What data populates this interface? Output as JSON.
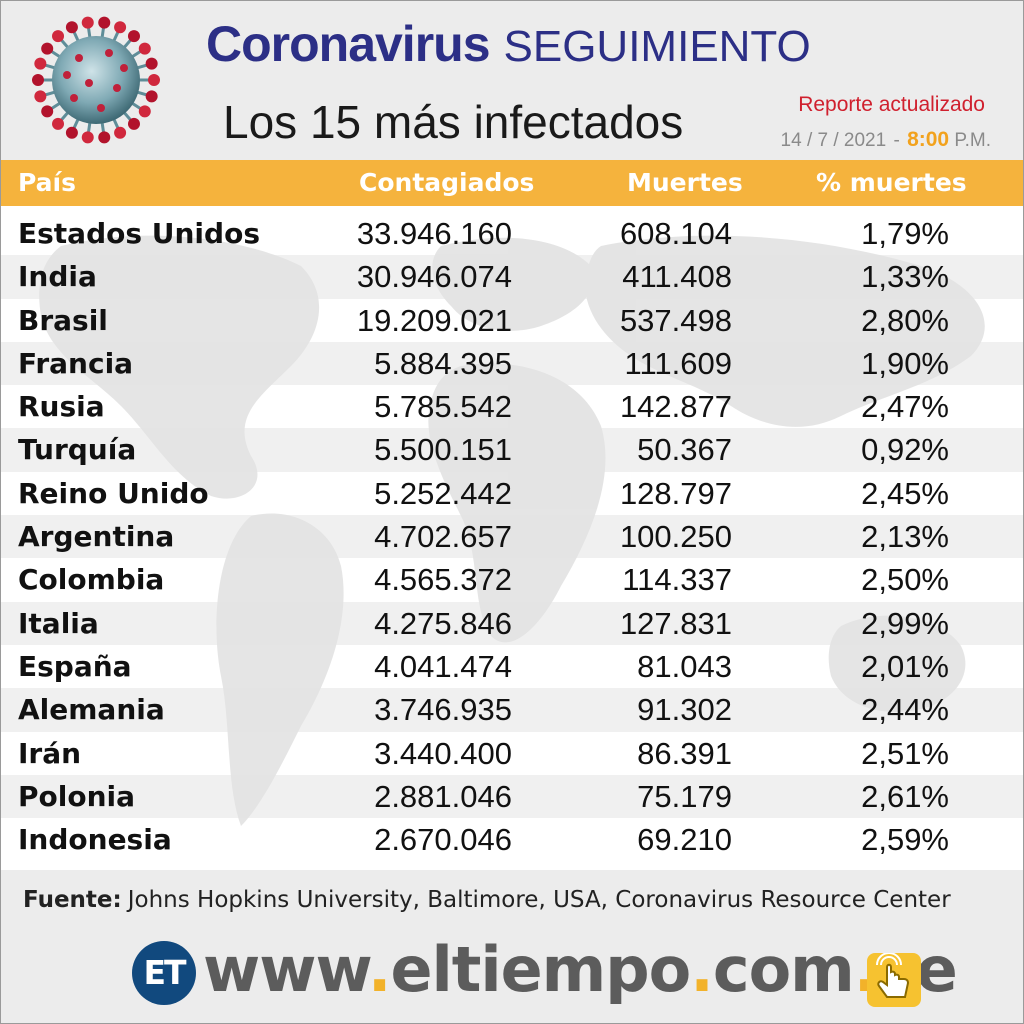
{
  "header": {
    "title_bold": "Coronavirus",
    "title_light": "SEGUIMIENTO",
    "subtitle": "Los 15 más infectados",
    "report_label": "Reporte actualizado",
    "report_date": "14 / 7 / 2021",
    "report_time": "8:00",
    "report_ampm": "P.M."
  },
  "chart_data": {
    "type": "table",
    "columns": [
      "País",
      "Contagiados",
      "Muertes",
      "% muertes"
    ],
    "rows": [
      [
        "Estados Unidos",
        "33.946.160",
        "608.104",
        "1,79%"
      ],
      [
        "India",
        "30.946.074",
        "411.408",
        "1,33%"
      ],
      [
        "Brasil",
        "19.209.021",
        "537.498",
        "2,80%"
      ],
      [
        "Francia",
        "5.884.395",
        "111.609",
        "1,90%"
      ],
      [
        "Rusia",
        "5.785.542",
        "142.877",
        "2,47%"
      ],
      [
        "Turquía",
        "5.500.151",
        "50.367",
        "0,92%"
      ],
      [
        "Reino Unido",
        "5.252.442",
        "128.797",
        "2,45%"
      ],
      [
        "Argentina",
        "4.702.657",
        "100.250",
        "2,13%"
      ],
      [
        "Colombia",
        "4.565.372",
        "114.337",
        "2,50%"
      ],
      [
        "Italia",
        "4.275.846",
        "127.831",
        "2,99%"
      ],
      [
        "España",
        "4.041.474",
        "81.043",
        "2,01%"
      ],
      [
        "Alemania",
        "3.746.935",
        "91.302",
        "2,44%"
      ],
      [
        "Irán",
        "3.440.400",
        "86.391",
        "2,51%"
      ],
      [
        "Polonia",
        "2.881.046",
        "75.179",
        "2,61%"
      ],
      [
        "Indonesia",
        "2.670.046",
        "69.210",
        "2,59%"
      ]
    ]
  },
  "footer": {
    "source_label": "Fuente:",
    "source_text": "Johns Hopkins University, Baltimore, USA, Coronavirus Resource Center",
    "logo_text": "ET",
    "url_parts": [
      "www",
      "eltiempo",
      "com",
      "ve"
    ]
  },
  "colors": {
    "header_bar": "#f5b33d",
    "title_blue": "#2c2f86",
    "report_red": "#d0202e",
    "accent_yellow": "#f2b22a",
    "logo_blue": "#11497e"
  },
  "icons": [
    "coronavirus-icon",
    "world-map-background",
    "pointer-hand-icon"
  ]
}
